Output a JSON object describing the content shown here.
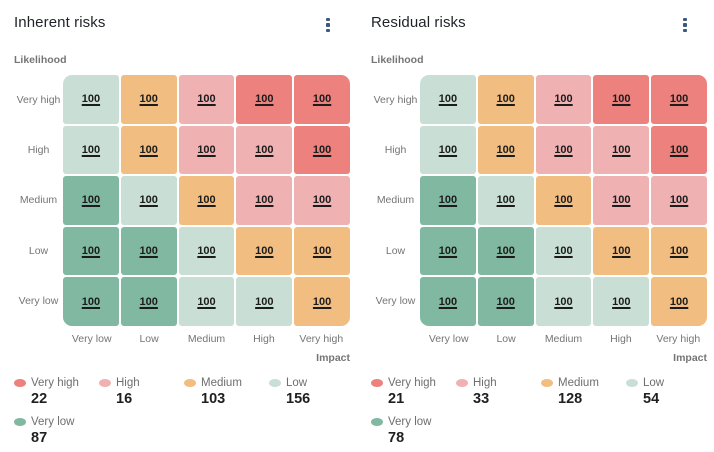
{
  "colors": {
    "veryhigh": "#ec817e",
    "high": "#f0b1b3",
    "medium": "#f2bd80",
    "low": "#c9dfd5",
    "verylow": "#81b8a2",
    "title_text": "#1f2328",
    "muted_text": "#757575",
    "cell_text": "#1c1c1c",
    "kebab_icon": "#3d5a7d"
  },
  "axes": {
    "likelihood_label": "Likelihood",
    "impact_label": "Impact",
    "row_labels": [
      "Very high",
      "High",
      "Medium",
      "Low",
      "Very low"
    ],
    "col_labels": [
      "Very low",
      "Low",
      "Medium",
      "High",
      "Very high"
    ]
  },
  "matrix_levels": [
    [
      "low",
      "medium",
      "high",
      "veryhigh",
      "veryhigh"
    ],
    [
      "low",
      "medium",
      "high",
      "high",
      "veryhigh"
    ],
    [
      "verylow",
      "low",
      "medium",
      "high",
      "high"
    ],
    [
      "verylow",
      "verylow",
      "low",
      "medium",
      "medium"
    ],
    [
      "verylow",
      "verylow",
      "low",
      "low",
      "medium"
    ]
  ],
  "chart_data": [
    {
      "type": "heatmap",
      "title": "Inherent risks",
      "xlabel": "Impact",
      "ylabel": "Likelihood",
      "x_categories": [
        "Very low",
        "Low",
        "Medium",
        "High",
        "Very high"
      ],
      "y_categories": [
        "Very high",
        "High",
        "Medium",
        "Low",
        "Very low"
      ],
      "values": [
        [
          100,
          100,
          100,
          100,
          100
        ],
        [
          100,
          100,
          100,
          100,
          100
        ],
        [
          100,
          100,
          100,
          100,
          100
        ],
        [
          100,
          100,
          100,
          100,
          100
        ],
        [
          100,
          100,
          100,
          100,
          100
        ]
      ],
      "legend": [
        {
          "label": "Very high",
          "level": "veryhigh",
          "count": "22"
        },
        {
          "label": "High",
          "level": "high",
          "count": "16"
        },
        {
          "label": "Medium",
          "level": "medium",
          "count": "103"
        },
        {
          "label": "Low",
          "level": "low",
          "count": "156"
        },
        {
          "label": "Very low",
          "level": "verylow",
          "count": "87"
        }
      ]
    },
    {
      "type": "heatmap",
      "title": "Residual risks",
      "xlabel": "Impact",
      "ylabel": "Likelihood",
      "x_categories": [
        "Very low",
        "Low",
        "Medium",
        "High",
        "Very high"
      ],
      "y_categories": [
        "Very high",
        "High",
        "Medium",
        "Low",
        "Very low"
      ],
      "values": [
        [
          100,
          100,
          100,
          100,
          100
        ],
        [
          100,
          100,
          100,
          100,
          100
        ],
        [
          100,
          100,
          100,
          100,
          100
        ],
        [
          100,
          100,
          100,
          100,
          100
        ],
        [
          100,
          100,
          100,
          100,
          100
        ]
      ],
      "legend": [
        {
          "label": "Very high",
          "level": "veryhigh",
          "count": "21"
        },
        {
          "label": "High",
          "level": "high",
          "count": "33"
        },
        {
          "label": "Medium",
          "level": "medium",
          "count": "128"
        },
        {
          "label": "Low",
          "level": "low",
          "count": "54"
        },
        {
          "label": "Very low",
          "level": "verylow",
          "count": "78"
        }
      ]
    }
  ]
}
